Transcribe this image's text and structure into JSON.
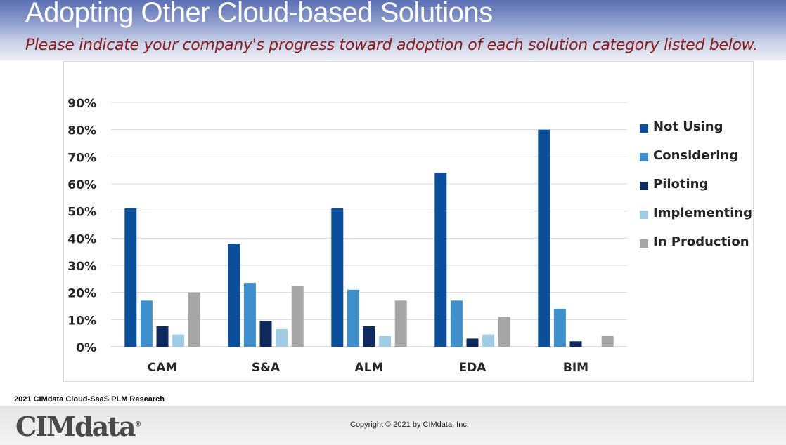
{
  "header": {
    "title": "Adopting Other Cloud-based Solutions",
    "subtitle": "Please indicate your company's progress toward adoption of each solution category listed below."
  },
  "chart_data": {
    "type": "bar",
    "title": "",
    "xlabel": "",
    "ylabel": "",
    "ylim": [
      0,
      90
    ],
    "yticks": [
      "0%",
      "10%",
      "20%",
      "30%",
      "40%",
      "50%",
      "60%",
      "70%",
      "80%",
      "90%"
    ],
    "categories": [
      "CAM",
      "S&A",
      "ALM",
      "EDA",
      "BIM"
    ],
    "series": [
      {
        "name": "Not Using",
        "color": "#0b4f9c",
        "values": [
          51,
          38,
          51,
          64,
          80
        ]
      },
      {
        "name": "Considering",
        "color": "#3f8fcc",
        "values": [
          17,
          23.5,
          21,
          17,
          14
        ]
      },
      {
        "name": "Piloting",
        "color": "#0f2a5e",
        "values": [
          7.5,
          9.5,
          7.5,
          3,
          2
        ]
      },
      {
        "name": "Implementing",
        "color": "#9fcbe4",
        "values": [
          4.5,
          6.5,
          4,
          4.5,
          0
        ]
      },
      {
        "name": "In Production",
        "color": "#a8a5a5",
        "values": [
          20,
          22.5,
          17,
          11,
          4
        ]
      }
    ],
    "legend": "right",
    "grid": true
  },
  "footer": {
    "source": "2021 CIMdata Cloud-SaaS PLM Research",
    "logo_text": "CIMdata",
    "logo_mark": "®",
    "copyright": "Copyright © 2021 by CIMdata, Inc."
  }
}
